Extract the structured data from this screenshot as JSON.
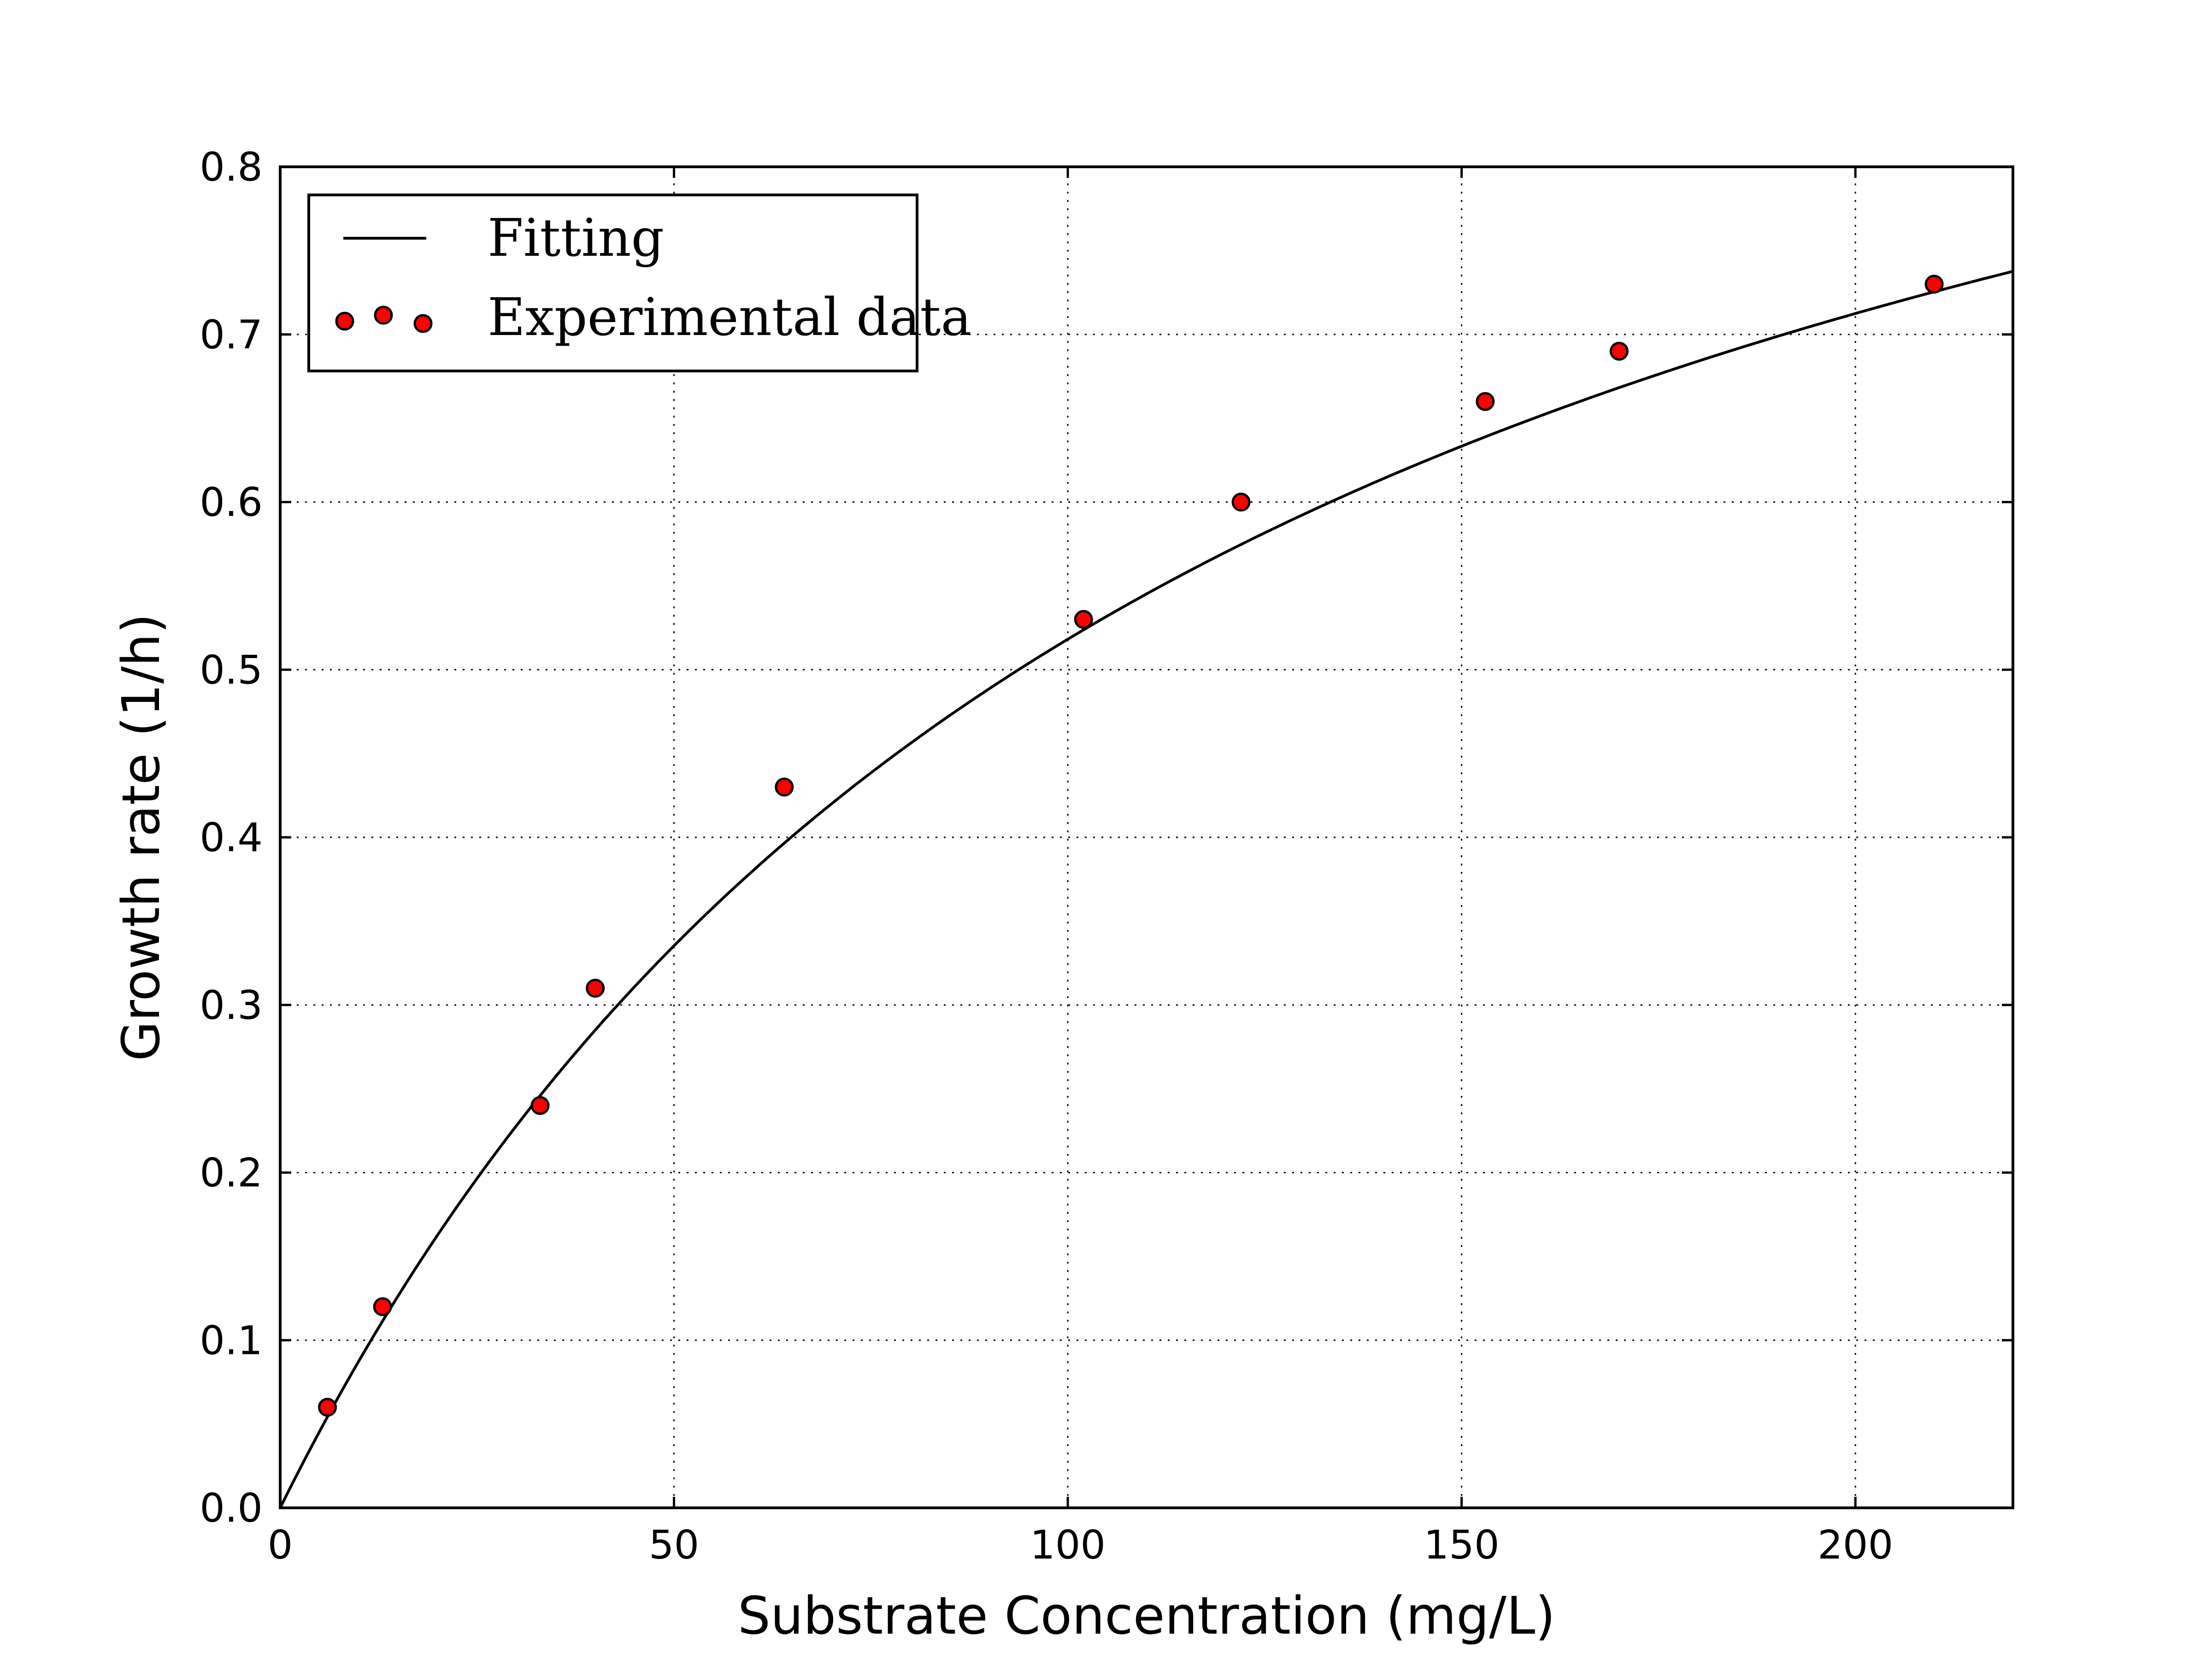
{
  "chart_data": {
    "type": "scatter",
    "title": "",
    "xlabel": "Substrate Concentration (mg/L)",
    "ylabel": "Growth rate (1/h)",
    "xlim": [
      0,
      220
    ],
    "ylim": [
      0,
      0.8
    ],
    "xticks": [
      0,
      50,
      100,
      150,
      200
    ],
    "yticks": [
      0.0,
      0.1,
      0.2,
      0.3,
      0.4,
      0.5,
      0.6,
      0.7,
      0.8
    ],
    "xtick_labels": [
      "0",
      "50",
      "100",
      "150",
      "200"
    ],
    "ytick_labels": [
      "0.0",
      "0.1",
      "0.2",
      "0.3",
      "0.4",
      "0.5",
      "0.6",
      "0.7",
      "0.8"
    ],
    "grid": true,
    "legend_position": "top-left",
    "series": [
      {
        "name": "Fitting",
        "kind": "line",
        "model": "monod",
        "mu_max": 1.14,
        "Ks": 120,
        "color": "#000000"
      },
      {
        "name": "Experimental data",
        "kind": "scatter",
        "color": "#ff0000",
        "edge_color": "#000000",
        "x": [
          6,
          13,
          33,
          40,
          64,
          102,
          122,
          153,
          170,
          210
        ],
        "y": [
          0.06,
          0.12,
          0.24,
          0.31,
          0.43,
          0.53,
          0.6,
          0.66,
          0.69,
          0.73
        ]
      }
    ]
  }
}
